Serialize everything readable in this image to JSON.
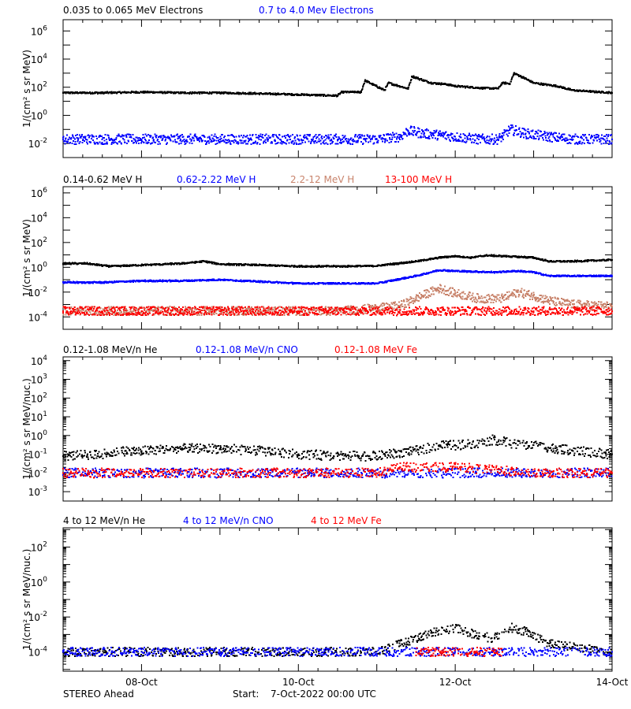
{
  "colors": {
    "black": "#000000",
    "blue": "#0000ff",
    "tan": "#c8836b",
    "red": "#ff0000"
  },
  "chart_data": [
    {
      "type": "scatter",
      "ylabel": "1/(cm² s sr MeV)",
      "yscale": "log",
      "yticks": [
        "10^-2",
        "10^0",
        "10^2",
        "10^4",
        "10^6"
      ],
      "x_range_days": [
        0,
        7
      ],
      "series": [
        {
          "name": "0.035 to 0.065 MeV Electrons",
          "color": "#000000",
          "x": [
            0,
            0.5,
            1,
            1.5,
            2,
            2.5,
            3,
            3.5,
            3.55,
            3.8,
            3.85,
            4.1,
            4.15,
            4.4,
            4.45,
            4.6,
            4.7,
            4.9,
            5,
            5.3,
            5.55,
            5.6,
            5.7,
            5.75,
            5.9,
            6,
            6.3,
            6.5,
            7
          ],
          "y": [
            40,
            40,
            45,
            40,
            40,
            35,
            30,
            25,
            45,
            45,
            300,
            60,
            200,
            80,
            600,
            300,
            200,
            160,
            120,
            90,
            80,
            200,
            180,
            1000,
            400,
            200,
            120,
            60,
            40
          ]
        },
        {
          "name": "0.7 to 4.0 Mev Electrons",
          "color": "#0000ff",
          "x": [
            0,
            0.5,
            1,
            1.5,
            2,
            2.5,
            3,
            3.5,
            4,
            4.3,
            4.4,
            4.6,
            4.8,
            5,
            5.3,
            5.55,
            5.6,
            5.7,
            5.9,
            6.2,
            6.5,
            7
          ],
          "y": [
            0.02,
            0.02,
            0.02,
            0.02,
            0.02,
            0.02,
            0.02,
            0.02,
            0.02,
            0.03,
            0.08,
            0.05,
            0.04,
            0.03,
            0.02,
            0.02,
            0.03,
            0.1,
            0.05,
            0.03,
            0.02,
            0.02
          ]
        }
      ]
    },
    {
      "type": "scatter",
      "ylabel": "1/(cm² s sr MeV)",
      "yscale": "log",
      "yticks": [
        "10^-4",
        "10^-2",
        "10^0",
        "10^2",
        "10^4",
        "10^6"
      ],
      "x_range_days": [
        0,
        7
      ],
      "series": [
        {
          "name": "0.14-0.62 MeV H",
          "color": "#000000",
          "x": [
            0,
            0.3,
            0.6,
            1,
            1.5,
            1.8,
            2,
            2.5,
            3,
            3.5,
            4,
            4.5,
            4.8,
            5,
            5.2,
            5.4,
            5.6,
            5.8,
            6,
            6.2,
            6.5,
            7
          ],
          "y": [
            2,
            2,
            1.2,
            1.5,
            2,
            3,
            1.8,
            1.5,
            1.2,
            1.2,
            1.3,
            3,
            6,
            8,
            6,
            9,
            8,
            7,
            6,
            3,
            3,
            4
          ]
        },
        {
          "name": "0.62-2.22 MeV H",
          "color": "#0000ff",
          "x": [
            0,
            0.5,
            1,
            1.5,
            2,
            2.5,
            3,
            3.5,
            4,
            4.5,
            4.8,
            5,
            5.5,
            5.8,
            6,
            6.2,
            6.5,
            7
          ],
          "y": [
            0.06,
            0.06,
            0.08,
            0.08,
            0.1,
            0.07,
            0.05,
            0.05,
            0.05,
            0.2,
            0.6,
            0.5,
            0.4,
            0.5,
            0.4,
            0.2,
            0.2,
            0.2
          ]
        },
        {
          "name": "2.2-12 MeV H",
          "color": "#c8836b",
          "x": [
            0,
            0.5,
            1,
            1.5,
            2,
            2.5,
            3,
            3.5,
            4,
            4.3,
            4.5,
            4.8,
            5,
            5.3,
            5.6,
            5.8,
            6,
            6.2,
            6.5,
            7
          ],
          "y": [
            0.0003,
            0.0003,
            0.0003,
            0.0003,
            0.0003,
            0.0003,
            0.0003,
            0.0003,
            0.0005,
            0.0008,
            0.003,
            0.02,
            0.008,
            0.003,
            0.003,
            0.01,
            0.005,
            0.002,
            0.001,
            0.0007
          ]
        },
        {
          "name": "13-100 MeV H",
          "color": "#ff0000",
          "x": [
            0,
            1,
            2,
            3,
            4,
            5,
            6,
            7
          ],
          "y": [
            0.0003,
            0.0003,
            0.0003,
            0.0003,
            0.0003,
            0.0003,
            0.0003,
            0.0003
          ]
        }
      ]
    },
    {
      "type": "scatter",
      "ylabel": "1/(cm² s sr MeV/nuc.)",
      "yscale": "log",
      "yticks": [
        "10^-3",
        "10^-2",
        "10^-1",
        "10^0",
        "10^1",
        "10^2",
        "10^3",
        "10^4"
      ],
      "x_range_days": [
        0,
        7
      ],
      "series": [
        {
          "name": "0.12-1.08 MeV/n He",
          "color": "#000000",
          "x": [
            0,
            0.5,
            0.8,
            1,
            1.5,
            2,
            2.5,
            3,
            3.5,
            4,
            4.5,
            4.8,
            5,
            5.3,
            5.5,
            5.8,
            6,
            6.5,
            7
          ],
          "y": [
            0.08,
            0.1,
            0.15,
            0.15,
            0.2,
            0.2,
            0.15,
            0.1,
            0.08,
            0.08,
            0.15,
            0.3,
            0.3,
            0.4,
            0.6,
            0.3,
            0.3,
            0.15,
            0.1
          ]
        },
        {
          "name": "0.12-1.08 MeV/n CNO",
          "color": "#0000ff",
          "x": [
            0,
            1,
            2,
            3,
            4,
            5,
            6,
            7
          ],
          "y": [
            0.01,
            0.01,
            0.01,
            0.01,
            0.01,
            0.01,
            0.01,
            0.01
          ]
        },
        {
          "name": "0.12-1.08 MeV Fe",
          "color": "#ff0000",
          "x": [
            0,
            1,
            2,
            3,
            4,
            4.3,
            5,
            6,
            7
          ],
          "y": [
            0.01,
            0.01,
            0.01,
            0.01,
            0.01,
            0.02,
            0.02,
            0.01,
            0.01
          ]
        }
      ]
    },
    {
      "type": "scatter",
      "ylabel": "1/(cm² s sr MeV/nuc.)",
      "yscale": "log",
      "yticks": [
        "10^-4",
        "10^-2",
        "10^0",
        "10^2"
      ],
      "x_range_days": [
        0,
        7
      ],
      "series": [
        {
          "name": "4 to 12 MeV/n He",
          "color": "#000000",
          "x": [
            0,
            1,
            2,
            3,
            4,
            4.4,
            4.7,
            5,
            5.3,
            5.5,
            5.7,
            5.9,
            6.2,
            6.5,
            7
          ],
          "y": [
            0.0001,
            0.0001,
            0.0001,
            0.0001,
            0.0001,
            0.0004,
            0.0012,
            0.0025,
            0.0008,
            0.0006,
            0.0025,
            0.0015,
            0.0003,
            0.0002,
            0.0001
          ]
        },
        {
          "name": "4 to 12 MeV/n CNO",
          "color": "#0000ff",
          "x": [
            0,
            1,
            2,
            3,
            4,
            5,
            6,
            7
          ],
          "y": [
            0.0001,
            0.0001,
            0.0001,
            0.0001,
            0.0001,
            0.0001,
            0.0001,
            0.0001
          ]
        },
        {
          "name": "4 to 12 MeV Fe",
          "color": "#ff0000",
          "x": [
            4.5,
            4.8,
            5.2,
            5.6
          ],
          "y": [
            0.0001,
            0.0001,
            0.0001,
            0.0001
          ]
        }
      ]
    }
  ],
  "x_axis": {
    "tick_labels": [
      "08-Oct",
      "10-Oct",
      "12-Oct",
      "14-Oct"
    ],
    "tick_days": [
      1,
      3,
      5,
      7
    ]
  },
  "footer": {
    "spacecraft": "STEREO Ahead",
    "start_label": "Start:",
    "start_value": "7-Oct-2022 00:00 UTC"
  }
}
